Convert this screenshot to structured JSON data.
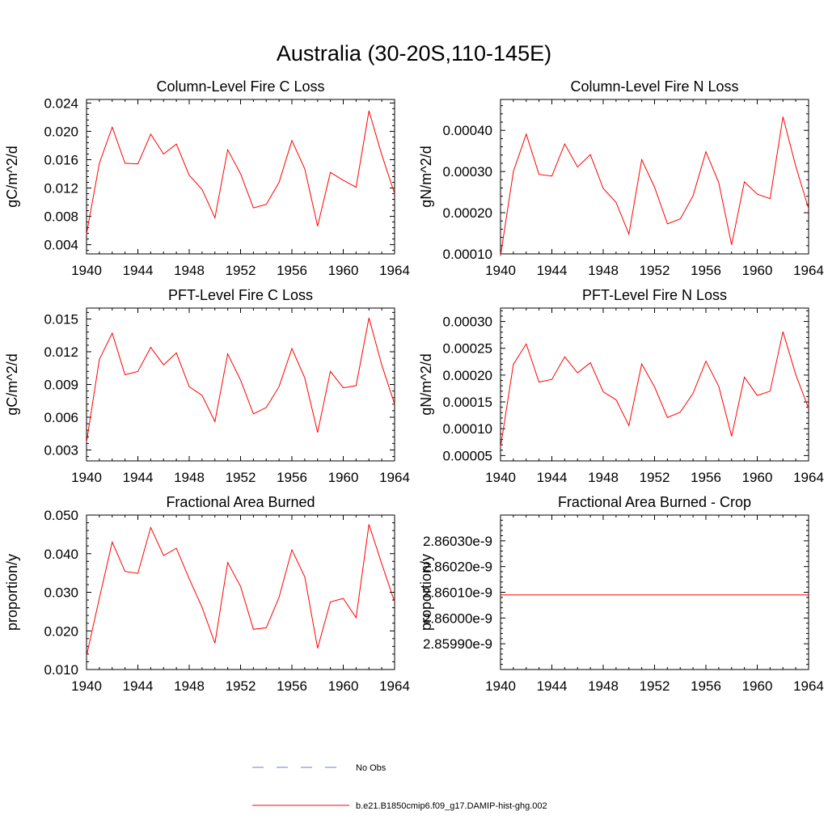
{
  "figure": {
    "title": "Australia (30-20S,110-145E)"
  },
  "chart_data": [
    {
      "type": "line",
      "title": "Column-Level Fire C Loss",
      "xlabel": "",
      "ylabel": "gC/m^2/d",
      "xlim": [
        1940,
        1964
      ],
      "ylim": [
        0.0027,
        0.0245
      ],
      "xticks": [
        1940,
        1944,
        1948,
        1952,
        1956,
        1960,
        1964
      ],
      "xtick_labels": [
        "1940",
        "1944",
        "1948",
        "1952",
        "1956",
        "1960",
        "1964"
      ],
      "yticks": [
        0.004,
        0.008,
        0.012,
        0.016,
        0.02,
        0.024
      ],
      "ytick_labels": [
        "0.004",
        "0.008",
        "0.012",
        "0.016",
        "0.020",
        "0.024"
      ],
      "grid": false,
      "x": [
        1940,
        1941,
        1942,
        1943,
        1944,
        1945,
        1946,
        1947,
        1948,
        1949,
        1950,
        1951,
        1952,
        1953,
        1954,
        1955,
        1956,
        1957,
        1958,
        1959,
        1960,
        1961,
        1962,
        1963,
        1964
      ],
      "series": [
        {
          "color": "#ff0000",
          "values": [
            0.0055,
            0.0155,
            0.0206,
            0.0155,
            0.0154,
            0.0196,
            0.0168,
            0.0182,
            0.0138,
            0.0118,
            0.0078,
            0.0174,
            0.014,
            0.0092,
            0.0097,
            0.0128,
            0.0187,
            0.0147,
            0.0066,
            0.0142,
            0.0131,
            0.0121,
            0.0229,
            0.0167,
            0.0112
          ]
        }
      ]
    },
    {
      "type": "line",
      "title": "Column-Level Fire N Loss",
      "xlabel": "",
      "ylabel": "gN/m^2/d",
      "xlim": [
        1940,
        1964
      ],
      "ylim": [
        0.0001,
        0.000475
      ],
      "xticks": [
        1940,
        1944,
        1948,
        1952,
        1956,
        1960,
        1964
      ],
      "xtick_labels": [
        "1940",
        "1944",
        "1948",
        "1952",
        "1956",
        "1960",
        "1964"
      ],
      "yticks": [
        0.0001,
        0.0002,
        0.0003,
        0.0004
      ],
      "ytick_labels": [
        "0.00010",
        "0.00020",
        "0.00030",
        "0.00040"
      ],
      "grid": false,
      "x": [
        1940,
        1941,
        1942,
        1943,
        1944,
        1945,
        1946,
        1947,
        1948,
        1949,
        1950,
        1951,
        1952,
        1953,
        1954,
        1955,
        1956,
        1957,
        1958,
        1959,
        1960,
        1961,
        1962,
        1963,
        1964
      ],
      "series": [
        {
          "color": "#ff0000",
          "values": [
            9.5e-05,
            0.0003,
            0.000391,
            0.000293,
            0.000289,
            0.000367,
            0.000311,
            0.000341,
            0.000259,
            0.000225,
            0.000148,
            0.000329,
            0.000262,
            0.000173,
            0.000185,
            0.000241,
            0.000348,
            0.000273,
            0.000122,
            0.000275,
            0.000245,
            0.000234,
            0.000433,
            0.000313,
            0.00021
          ]
        }
      ]
    },
    {
      "type": "line",
      "title": "PFT-Level Fire C Loss",
      "xlabel": "",
      "ylabel": "gC/m^2/d",
      "xlim": [
        1940,
        1964
      ],
      "ylim": [
        0.002,
        0.016
      ],
      "xticks": [
        1940,
        1944,
        1948,
        1952,
        1956,
        1960,
        1964
      ],
      "xtick_labels": [
        "1940",
        "1944",
        "1948",
        "1952",
        "1956",
        "1960",
        "1964"
      ],
      "yticks": [
        0.003,
        0.006,
        0.009,
        0.012,
        0.015
      ],
      "ytick_labels": [
        "0.003",
        "0.006",
        "0.009",
        "0.012",
        "0.015"
      ],
      "grid": false,
      "x": [
        1940,
        1941,
        1942,
        1943,
        1944,
        1945,
        1946,
        1947,
        1948,
        1949,
        1950,
        1951,
        1952,
        1953,
        1954,
        1955,
        1956,
        1957,
        1958,
        1959,
        1960,
        1961,
        1962,
        1963,
        1964
      ],
      "series": [
        {
          "color": "#ff0000",
          "values": [
            0.0037,
            0.0113,
            0.0137,
            0.0099,
            0.0102,
            0.0124,
            0.0108,
            0.0119,
            0.0088,
            0.008,
            0.0056,
            0.0118,
            0.0094,
            0.0063,
            0.0069,
            0.0088,
            0.0123,
            0.0096,
            0.0046,
            0.0102,
            0.0087,
            0.0089,
            0.0151,
            0.0108,
            0.0072
          ]
        }
      ]
    },
    {
      "type": "line",
      "title": "PFT-Level Fire N Loss",
      "xlabel": "",
      "ylabel": "gN/m^2/d",
      "xlim": [
        1940,
        1964
      ],
      "ylim": [
        4e-05,
        0.000325
      ],
      "xticks": [
        1940,
        1944,
        1948,
        1952,
        1956,
        1960,
        1964
      ],
      "xtick_labels": [
        "1940",
        "1944",
        "1948",
        "1952",
        "1956",
        "1960",
        "1964"
      ],
      "yticks": [
        5e-05,
        0.0001,
        0.00015,
        0.0002,
        0.00025,
        0.0003
      ],
      "ytick_labels": [
        "0.00005",
        "0.00010",
        "0.00015",
        "0.00020",
        "0.00025",
        "0.00030"
      ],
      "grid": false,
      "x": [
        1940,
        1941,
        1942,
        1943,
        1944,
        1945,
        1946,
        1947,
        1948,
        1949,
        1950,
        1951,
        1952,
        1953,
        1954,
        1955,
        1956,
        1957,
        1958,
        1959,
        1960,
        1961,
        1962,
        1963,
        1964
      ],
      "series": [
        {
          "color": "#ff0000",
          "values": [
            6.5e-05,
            0.00022,
            0.000258,
            0.000187,
            0.000192,
            0.000234,
            0.000204,
            0.000223,
            0.000169,
            0.000154,
            0.000106,
            0.000221,
            0.000178,
            0.000121,
            0.000131,
            0.000166,
            0.000226,
            0.000179,
            8.6e-05,
            0.000196,
            0.000162,
            0.00017,
            0.000281,
            0.000201,
            0.000138
          ]
        }
      ]
    },
    {
      "type": "line",
      "title": "Fractional Area Burned",
      "xlabel": "",
      "ylabel": "proportion/y",
      "xlim": [
        1940,
        1964
      ],
      "ylim": [
        0.01,
        0.05
      ],
      "xticks": [
        1940,
        1944,
        1948,
        1952,
        1956,
        1960,
        1964
      ],
      "xtick_labels": [
        "1940",
        "1944",
        "1948",
        "1952",
        "1956",
        "1960",
        "1964"
      ],
      "yticks": [
        0.01,
        0.02,
        0.03,
        0.04,
        0.05
      ],
      "ytick_labels": [
        "0.010",
        "0.020",
        "0.030",
        "0.040",
        "0.050"
      ],
      "grid": false,
      "x": [
        1940,
        1941,
        1942,
        1943,
        1944,
        1945,
        1946,
        1947,
        1948,
        1949,
        1950,
        1951,
        1952,
        1953,
        1954,
        1955,
        1956,
        1957,
        1958,
        1959,
        1960,
        1961,
        1962,
        1963,
        1964
      ],
      "series": [
        {
          "color": "#ff0000",
          "values": [
            0.0135,
            0.0285,
            0.043,
            0.0354,
            0.0349,
            0.0468,
            0.0395,
            0.0414,
            0.0335,
            0.0261,
            0.0168,
            0.0377,
            0.0315,
            0.0204,
            0.0208,
            0.0287,
            0.041,
            0.034,
            0.0155,
            0.0275,
            0.0284,
            0.0234,
            0.0476,
            0.0374,
            0.0275
          ]
        }
      ]
    },
    {
      "type": "line",
      "title": "Fractional Area Burned - Crop",
      "xlabel": "",
      "ylabel": "proportion/y",
      "xlim": [
        1940,
        1964
      ],
      "ylim": [
        2.8598e-09,
        2.8604e-09
      ],
      "xticks": [
        1940,
        1944,
        1948,
        1952,
        1956,
        1960,
        1964
      ],
      "xtick_labels": [
        "1940",
        "1944",
        "1948",
        "1952",
        "1956",
        "1960",
        "1964"
      ],
      "yticks": [
        2.8599e-09,
        2.86e-09,
        2.8601e-09,
        2.8602e-09,
        2.8603e-09
      ],
      "ytick_labels": [
        "2.85990e-9",
        "2.86000e-9",
        "2.86010e-9",
        "2.86020e-9",
        "2.86030e-9"
      ],
      "grid": false,
      "x": [
        1940,
        1941,
        1942,
        1943,
        1944,
        1945,
        1946,
        1947,
        1948,
        1949,
        1950,
        1951,
        1952,
        1953,
        1954,
        1955,
        1956,
        1957,
        1958,
        1959,
        1960,
        1961,
        1962,
        1963,
        1964
      ],
      "series": [
        {
          "color": "#ff0000",
          "values": [
            2.86009e-09,
            2.86009e-09,
            2.86009e-09,
            2.86009e-09,
            2.86009e-09,
            2.86009e-09,
            2.86009e-09,
            2.86009e-09,
            2.86009e-09,
            2.86009e-09,
            2.86009e-09,
            2.86009e-09,
            2.86009e-09,
            2.86009e-09,
            2.86009e-09,
            2.86009e-09,
            2.86009e-09,
            2.86009e-09,
            2.86009e-09,
            2.86009e-09,
            2.86009e-09,
            2.86009e-09,
            2.86009e-09,
            2.86009e-09,
            2.86009e-09
          ]
        }
      ]
    }
  ],
  "legend": {
    "items": [
      {
        "label": "No Obs",
        "color": "#6a7fd0",
        "style": "dashed"
      },
      {
        "label": "b.e21.B1850cmip6.f09_g17.DAMIP-hist-ghg.002",
        "color": "#ff0000",
        "style": "solid"
      }
    ]
  }
}
